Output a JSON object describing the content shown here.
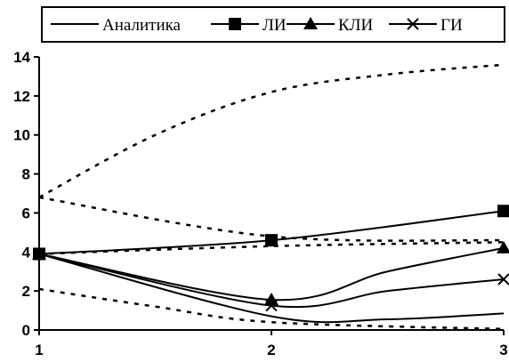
{
  "chart_data": {
    "type": "line",
    "x": [
      1,
      2,
      3
    ],
    "xlim": [
      1,
      3
    ],
    "ylim": [
      0,
      14
    ],
    "y_ticks": [
      0,
      2,
      4,
      6,
      8,
      10,
      12,
      14
    ],
    "x_ticks": [
      1,
      2,
      3
    ],
    "grid": false,
    "legend_position": "top",
    "title": "",
    "xlabel": "",
    "ylabel": "",
    "series": [
      {
        "name": "Аналитика",
        "marker": "none",
        "style": "solid",
        "values": [
          3.9,
          0.7,
          0.85
        ],
        "extra_points": [
          [
            2.5,
            0.55
          ]
        ]
      },
      {
        "name": "ЛИ",
        "marker": "square",
        "style": "solid",
        "values": [
          3.9,
          4.6,
          6.1
        ]
      },
      {
        "name": "КЛИ",
        "marker": "triangle",
        "style": "solid",
        "values": [
          3.9,
          1.55,
          4.2
        ],
        "extra_points": [
          [
            2.5,
            3.0
          ]
        ]
      },
      {
        "name": "ГИ",
        "marker": "x",
        "style": "solid",
        "values": [
          3.9,
          1.25,
          2.6
        ],
        "extra_points": [
          [
            2.5,
            2.0
          ]
        ]
      }
    ],
    "dashed_bounds": [
      {
        "values": [
          6.8,
          12.2,
          13.6
        ],
        "extra_points": [
          [
            1.5,
            10.0
          ],
          [
            2.5,
            13.1
          ]
        ]
      },
      {
        "values": [
          6.8,
          4.8,
          4.6
        ]
      },
      {
        "values": [
          3.9,
          4.3,
          4.5
        ]
      },
      {
        "values": [
          2.1,
          0.4,
          0.05
        ],
        "extra_points": [
          [
            1.5,
            1.2
          ]
        ]
      }
    ]
  }
}
